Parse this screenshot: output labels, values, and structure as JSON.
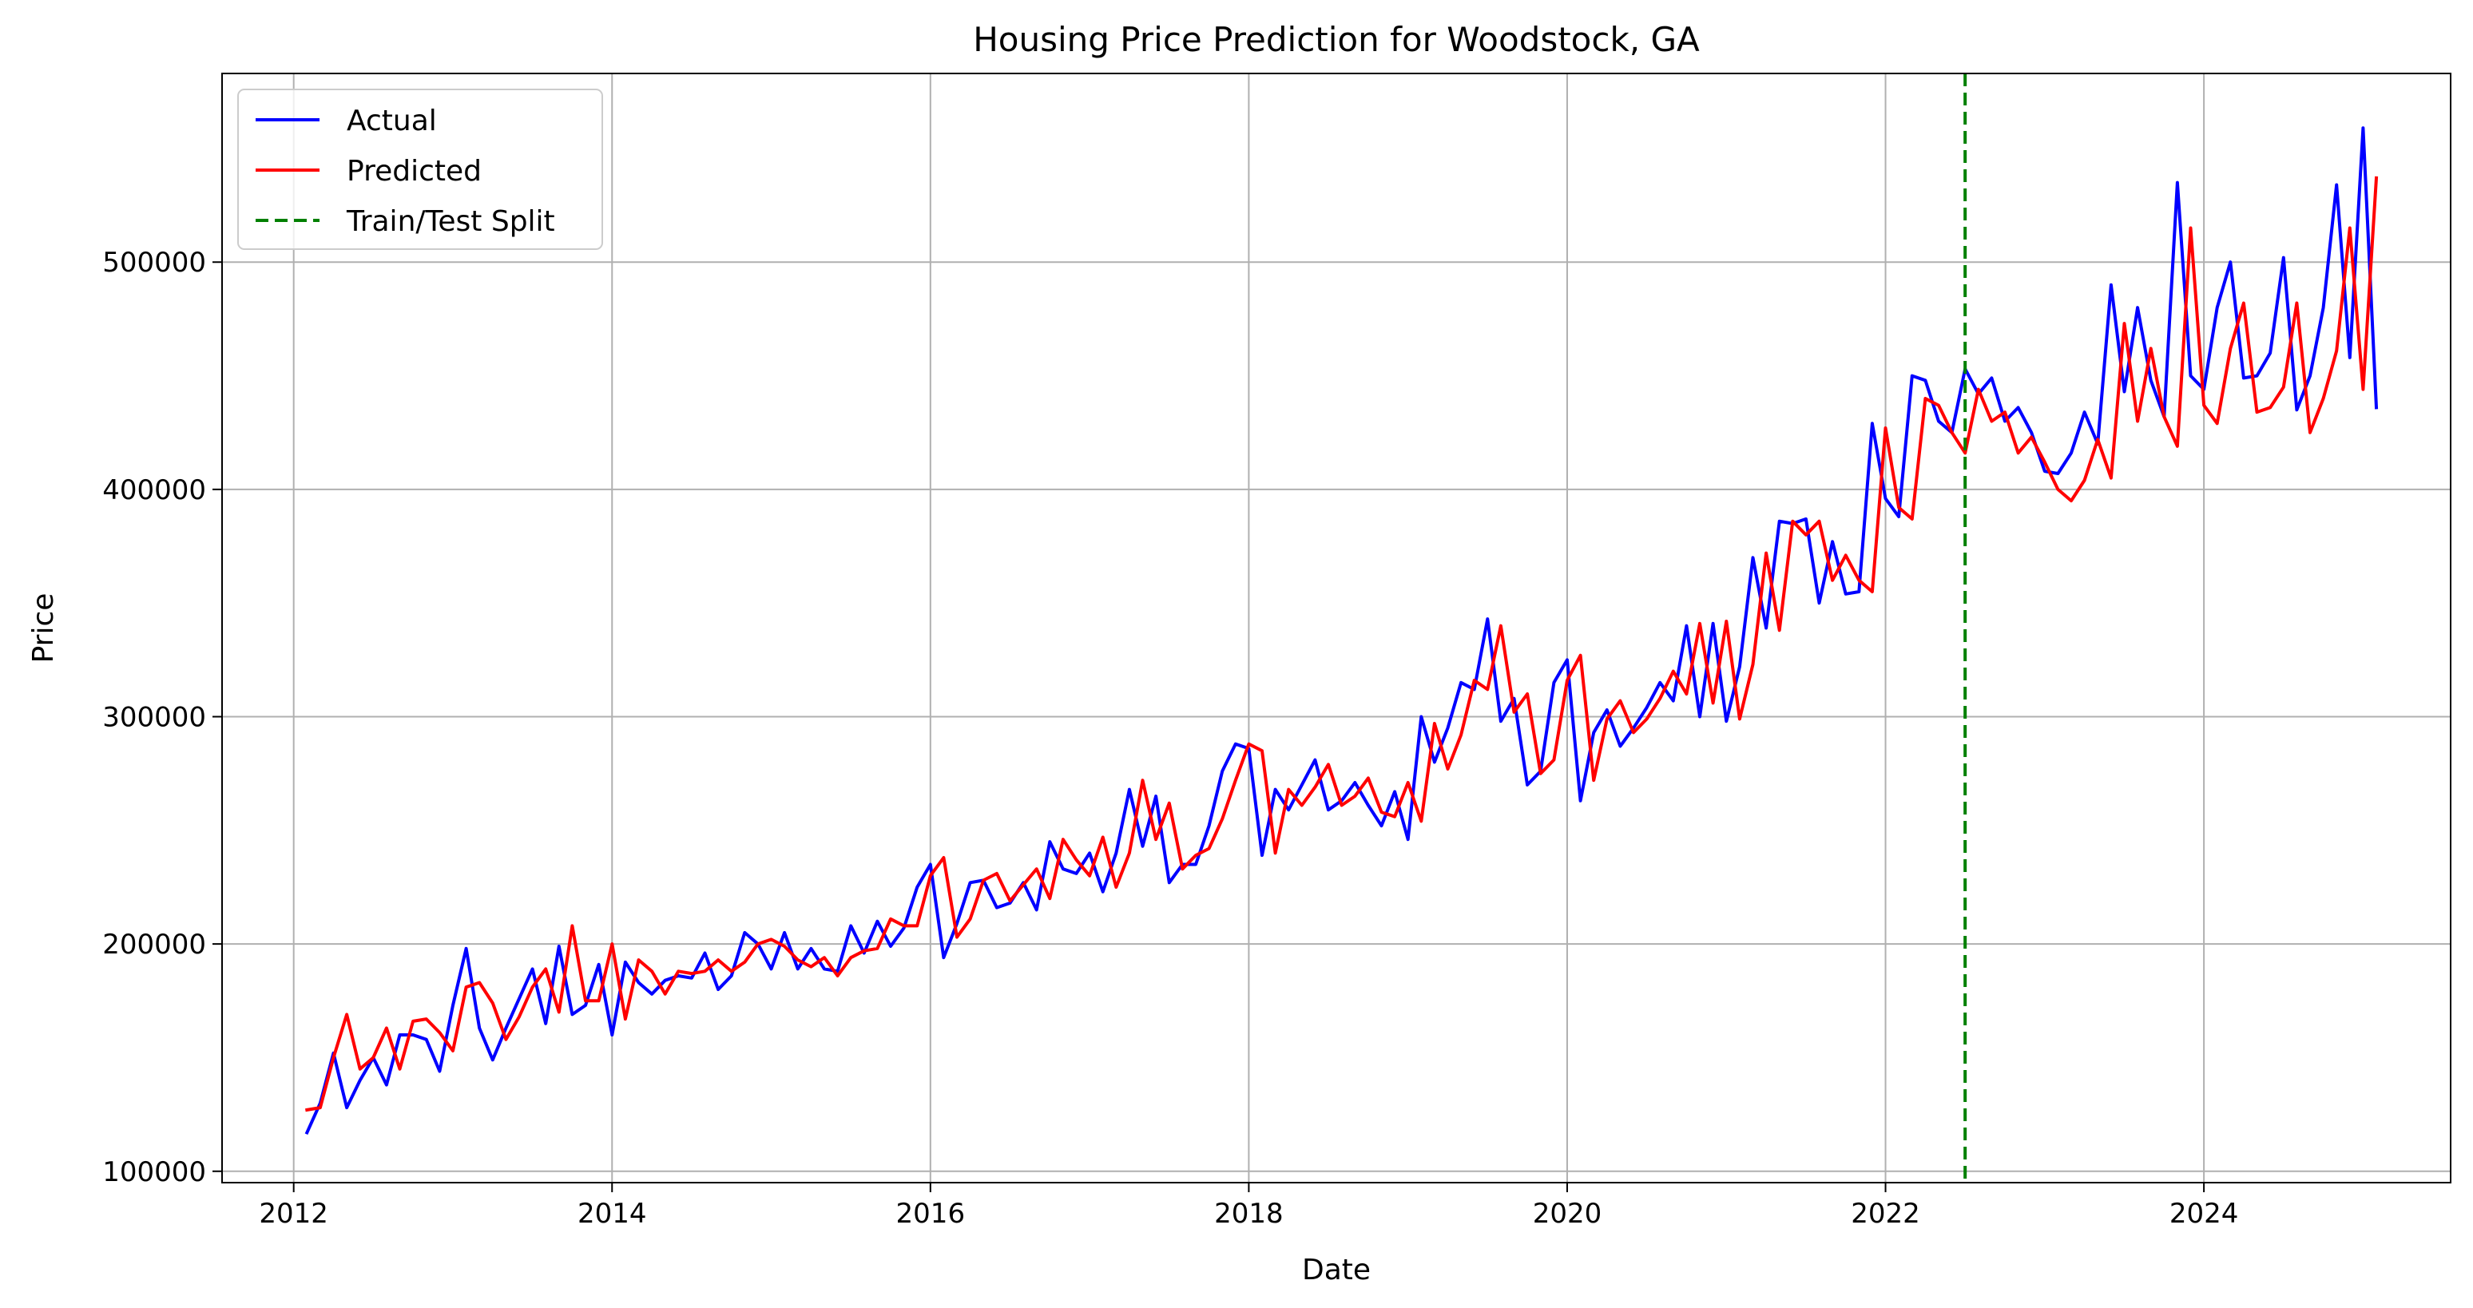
{
  "chart_data": {
    "type": "line",
    "title": "Housing Price Prediction for Woodstock, GA",
    "xlabel": "Date",
    "ylabel": "Price",
    "x_ticks": [
      "2012",
      "2014",
      "2016",
      "2018",
      "2020",
      "2022",
      "2024"
    ],
    "y_ticks": [
      "100000",
      "200000",
      "300000",
      "400000",
      "500000"
    ],
    "grid": true,
    "legend_position": "top-left",
    "split_date": "2022-07",
    "split_color": "#008000",
    "split_name": "Train/Test Split",
    "series": [
      {
        "name": "Actual",
        "color": "#0000ff",
        "x": [
          "2012-02",
          "2012-03",
          "2012-04",
          "2012-05",
          "2012-06",
          "2012-07",
          "2012-08",
          "2012-09",
          "2012-10",
          "2012-11",
          "2012-12",
          "2013-01",
          "2013-02",
          "2013-03",
          "2013-04",
          "2013-05",
          "2013-06",
          "2013-07",
          "2013-08",
          "2013-09",
          "2013-10",
          "2013-11",
          "2013-12",
          "2014-01",
          "2014-02",
          "2014-03",
          "2014-04",
          "2014-05",
          "2014-06",
          "2014-07",
          "2014-08",
          "2014-09",
          "2014-10",
          "2014-11",
          "2014-12",
          "2015-01",
          "2015-02",
          "2015-03",
          "2015-04",
          "2015-05",
          "2015-06",
          "2015-07",
          "2015-08",
          "2015-09",
          "2015-10",
          "2015-11",
          "2015-12",
          "2016-01",
          "2016-02",
          "2016-03",
          "2016-04",
          "2016-05",
          "2016-06",
          "2016-07",
          "2016-08",
          "2016-09",
          "2016-10",
          "2016-11",
          "2016-12",
          "2017-01",
          "2017-02",
          "2017-03",
          "2017-04",
          "2017-05",
          "2017-06",
          "2017-07",
          "2017-08",
          "2017-09",
          "2017-10",
          "2017-11",
          "2017-12",
          "2018-01",
          "2018-02",
          "2018-03",
          "2018-04",
          "2018-05",
          "2018-06",
          "2018-07",
          "2018-08",
          "2018-09",
          "2018-10",
          "2018-11",
          "2018-12",
          "2019-01",
          "2019-02",
          "2019-03",
          "2019-04",
          "2019-05",
          "2019-06",
          "2019-07",
          "2019-08",
          "2019-09",
          "2019-10",
          "2019-11",
          "2019-12",
          "2020-01",
          "2020-02",
          "2020-03",
          "2020-04",
          "2020-05",
          "2020-06",
          "2020-07",
          "2020-08",
          "2020-09",
          "2020-10",
          "2020-11",
          "2020-12",
          "2021-01",
          "2021-02",
          "2021-03",
          "2021-04",
          "2021-05",
          "2021-06",
          "2021-07",
          "2021-08",
          "2021-09",
          "2021-10",
          "2021-11",
          "2021-12",
          "2022-01",
          "2022-02",
          "2022-03",
          "2022-04",
          "2022-05",
          "2022-06",
          "2022-07",
          "2022-08",
          "2022-09",
          "2022-10",
          "2022-11",
          "2022-12",
          "2023-01",
          "2023-02",
          "2023-03",
          "2023-04",
          "2023-05",
          "2023-06",
          "2023-07",
          "2023-08",
          "2023-09",
          "2023-10",
          "2023-11",
          "2023-12",
          "2024-01",
          "2024-02",
          "2024-03",
          "2024-04",
          "2024-05",
          "2024-06",
          "2024-07",
          "2024-08",
          "2024-09",
          "2024-10",
          "2024-11",
          "2024-12",
          "2025-01",
          "2025-02"
        ],
        "values": [
          117000,
          130000,
          152000,
          128000,
          140000,
          150000,
          138000,
          160000,
          160000,
          158000,
          144000,
          173000,
          198000,
          163000,
          149000,
          163000,
          176000,
          189000,
          165000,
          199000,
          169000,
          173000,
          191000,
          160000,
          192000,
          183000,
          178000,
          184000,
          186000,
          185000,
          196000,
          180000,
          186000,
          205000,
          200000,
          189000,
          205000,
          189000,
          198000,
          189000,
          188000,
          208000,
          196000,
          210000,
          199000,
          207000,
          225000,
          235000,
          194000,
          209000,
          227000,
          228000,
          216000,
          218000,
          227000,
          215000,
          245000,
          233000,
          231000,
          240000,
          223000,
          240000,
          268000,
          243000,
          265000,
          227000,
          235000,
          235000,
          252000,
          276000,
          288000,
          286000,
          239000,
          268000,
          259000,
          270000,
          281000,
          259000,
          263000,
          271000,
          261000,
          252000,
          267000,
          246000,
          300000,
          280000,
          295000,
          315000,
          312000,
          343000,
          298000,
          308000,
          270000,
          276000,
          315000,
          325000,
          263000,
          293000,
          303000,
          287000,
          295000,
          304000,
          315000,
          307000,
          340000,
          300000,
          341000,
          298000,
          322000,
          370000,
          339000,
          386000,
          385000,
          387000,
          350000,
          377000,
          354000,
          355000,
          429000,
          396000,
          388000,
          450000,
          448000,
          430000,
          425000,
          453000,
          442000,
          449000,
          430000,
          436000,
          425000,
          408000,
          407000,
          416000,
          434000,
          420000,
          490000,
          443000,
          480000,
          448000,
          432000,
          535000,
          450000,
          444000,
          480000,
          500000,
          449000,
          450000,
          460000,
          502000,
          435000,
          450000,
          480000,
          534000,
          458000,
          559000,
          436000
        ]
      },
      {
        "name": "Predicted",
        "color": "#ff0000",
        "x": [
          "2012-02",
          "2012-03",
          "2012-04",
          "2012-05",
          "2012-06",
          "2012-07",
          "2012-08",
          "2012-09",
          "2012-10",
          "2012-11",
          "2012-12",
          "2013-01",
          "2013-02",
          "2013-03",
          "2013-04",
          "2013-05",
          "2013-06",
          "2013-07",
          "2013-08",
          "2013-09",
          "2013-10",
          "2013-11",
          "2013-12",
          "2014-01",
          "2014-02",
          "2014-03",
          "2014-04",
          "2014-05",
          "2014-06",
          "2014-07",
          "2014-08",
          "2014-09",
          "2014-10",
          "2014-11",
          "2014-12",
          "2015-01",
          "2015-02",
          "2015-03",
          "2015-04",
          "2015-05",
          "2015-06",
          "2015-07",
          "2015-08",
          "2015-09",
          "2015-10",
          "2015-11",
          "2015-12",
          "2016-01",
          "2016-02",
          "2016-03",
          "2016-04",
          "2016-05",
          "2016-06",
          "2016-07",
          "2016-08",
          "2016-09",
          "2016-10",
          "2016-11",
          "2016-12",
          "2017-01",
          "2017-02",
          "2017-03",
          "2017-04",
          "2017-05",
          "2017-06",
          "2017-07",
          "2017-08",
          "2017-09",
          "2017-10",
          "2017-11",
          "2017-12",
          "2018-01",
          "2018-02",
          "2018-03",
          "2018-04",
          "2018-05",
          "2018-06",
          "2018-07",
          "2018-08",
          "2018-09",
          "2018-10",
          "2018-11",
          "2018-12",
          "2019-01",
          "2019-02",
          "2019-03",
          "2019-04",
          "2019-05",
          "2019-06",
          "2019-07",
          "2019-08",
          "2019-09",
          "2019-10",
          "2019-11",
          "2019-12",
          "2020-01",
          "2020-02",
          "2020-03",
          "2020-04",
          "2020-05",
          "2020-06",
          "2020-07",
          "2020-08",
          "2020-09",
          "2020-10",
          "2020-11",
          "2020-12",
          "2021-01",
          "2021-02",
          "2021-03",
          "2021-04",
          "2021-05",
          "2021-06",
          "2021-07",
          "2021-08",
          "2021-09",
          "2021-10",
          "2021-11",
          "2021-12",
          "2022-01",
          "2022-02",
          "2022-03",
          "2022-04",
          "2022-05",
          "2022-06",
          "2022-07",
          "2022-08",
          "2022-09",
          "2022-10",
          "2022-11",
          "2022-12",
          "2023-01",
          "2023-02",
          "2023-03",
          "2023-04",
          "2023-05",
          "2023-06",
          "2023-07",
          "2023-08",
          "2023-09",
          "2023-10",
          "2023-11",
          "2023-12",
          "2024-01",
          "2024-02",
          "2024-03",
          "2024-04",
          "2024-05",
          "2024-06",
          "2024-07",
          "2024-08",
          "2024-09",
          "2024-10",
          "2024-11",
          "2024-12",
          "2025-01",
          "2025-02"
        ],
        "values": [
          127000,
          128000,
          150000,
          169000,
          145000,
          150000,
          163000,
          145000,
          166000,
          167000,
          161000,
          153000,
          181000,
          183000,
          174000,
          158000,
          168000,
          181000,
          189000,
          170000,
          208000,
          175000,
          175000,
          200000,
          167000,
          193000,
          188000,
          178000,
          188000,
          187000,
          188000,
          193000,
          188000,
          192000,
          200000,
          202000,
          199000,
          193000,
          190000,
          194000,
          186000,
          194000,
          197000,
          198000,
          211000,
          208000,
          208000,
          230000,
          238000,
          203000,
          211000,
          228000,
          231000,
          219000,
          226000,
          233000,
          220000,
          246000,
          237000,
          230000,
          247000,
          225000,
          240000,
          272000,
          246000,
          262000,
          233000,
          239000,
          242000,
          255000,
          272000,
          288000,
          285000,
          240000,
          268000,
          261000,
          269000,
          279000,
          261000,
          265000,
          273000,
          258000,
          256000,
          271000,
          254000,
          297000,
          277000,
          292000,
          316000,
          312000,
          340000,
          302000,
          310000,
          275000,
          281000,
          316000,
          327000,
          272000,
          299000,
          307000,
          293000,
          299000,
          308000,
          320000,
          310000,
          341000,
          306000,
          342000,
          299000,
          323000,
          372000,
          338000,
          386000,
          380000,
          386000,
          360000,
          371000,
          360000,
          355000,
          427000,
          392000,
          387000,
          440000,
          437000,
          425000,
          416000,
          444000,
          430000,
          434000,
          416000,
          423000,
          412000,
          400000,
          395000,
          404000,
          422000,
          405000,
          473000,
          430000,
          462000,
          432000,
          419000,
          515000,
          437000,
          429000,
          462000,
          482000,
          434000,
          436000,
          445000,
          482000,
          425000,
          440000,
          461000,
          515000,
          444000,
          537000
        ]
      }
    ]
  }
}
